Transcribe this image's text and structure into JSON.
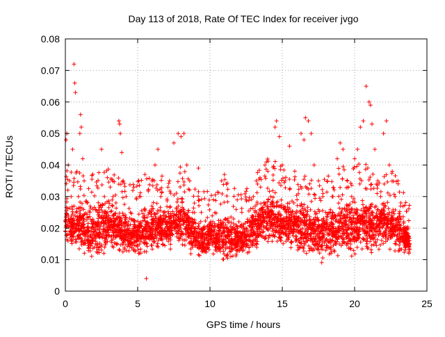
{
  "chart_data": {
    "type": "scatter",
    "title": "Day 113 of 2018, Rate Of TEC Index for receiver jvgo",
    "xlabel": "GPS time / hours",
    "ylabel": "ROTI / TECUs",
    "xlim": [
      0,
      25
    ],
    "ylim": [
      0,
      0.08
    ],
    "x_ticks": [
      "0",
      "5",
      "10",
      "15",
      "20",
      "25"
    ],
    "y_ticks": [
      "0",
      "0.01",
      "0.02",
      "0.03",
      "0.04",
      "0.05",
      "0.06",
      "0.07",
      "0.08"
    ],
    "x_tick_values": [
      0,
      5,
      10,
      15,
      20,
      25
    ],
    "y_tick_values": [
      0,
      0.01,
      0.02,
      0.03,
      0.04,
      0.05,
      0.06,
      0.07,
      0.08
    ],
    "grid": true,
    "marker": "+",
    "marker_color": "#ff0000",
    "series": [
      {
        "points": [
          [
            0.05,
            0.048
          ],
          [
            0.1,
            0.05
          ],
          [
            0.2,
            0.04
          ],
          [
            0.3,
            0.035
          ],
          [
            0.4,
            0.03
          ],
          [
            0.5,
            0.045
          ],
          [
            0.6,
            0.072
          ],
          [
            0.65,
            0.066
          ],
          [
            0.7,
            0.063
          ],
          [
            0.8,
            0.038
          ],
          [
            0.9,
            0.03
          ],
          [
            1.0,
            0.05
          ],
          [
            1.05,
            0.056
          ],
          [
            1.1,
            0.052
          ],
          [
            1.2,
            0.042
          ],
          [
            1.3,
            0.035
          ],
          [
            1.5,
            0.028
          ],
          [
            1.7,
            0.025
          ],
          [
            1.9,
            0.018
          ],
          [
            2.1,
            0.015
          ],
          [
            2.3,
            0.022
          ],
          [
            2.5,
            0.045
          ],
          [
            2.7,
            0.03
          ],
          [
            2.9,
            0.025
          ],
          [
            3.1,
            0.033
          ],
          [
            3.3,
            0.03
          ],
          [
            3.5,
            0.028
          ],
          [
            3.7,
            0.054
          ],
          [
            3.75,
            0.053
          ],
          [
            3.8,
            0.05
          ],
          [
            3.9,
            0.044
          ],
          [
            4.0,
            0.035
          ],
          [
            4.2,
            0.03
          ],
          [
            4.5,
            0.025
          ],
          [
            4.8,
            0.021
          ],
          [
            5.0,
            0.018
          ],
          [
            5.2,
            0.03
          ],
          [
            5.5,
            0.037
          ],
          [
            5.6,
            0.004
          ],
          [
            5.8,
            0.025
          ],
          [
            6.0,
            0.035
          ],
          [
            6.2,
            0.04
          ],
          [
            6.4,
            0.045
          ],
          [
            6.6,
            0.03
          ],
          [
            6.8,
            0.025
          ],
          [
            7.0,
            0.022
          ],
          [
            7.2,
            0.035
          ],
          [
            7.5,
            0.047
          ],
          [
            7.8,
            0.05
          ],
          [
            8.0,
            0.049
          ],
          [
            8.2,
            0.05
          ],
          [
            8.4,
            0.04
          ],
          [
            8.6,
            0.035
          ],
          [
            8.8,
            0.025
          ],
          [
            9.0,
            0.02
          ],
          [
            9.2,
            0.039
          ],
          [
            9.4,
            0.025
          ],
          [
            9.6,
            0.018
          ],
          [
            9.8,
            0.015
          ],
          [
            10.0,
            0.02
          ],
          [
            10.2,
            0.022
          ],
          [
            10.5,
            0.018
          ],
          [
            10.8,
            0.035
          ],
          [
            11.0,
            0.037
          ],
          [
            11.2,
            0.02
          ],
          [
            11.5,
            0.015
          ],
          [
            11.8,
            0.013
          ],
          [
            12.0,
            0.022
          ],
          [
            12.2,
            0.025
          ],
          [
            12.5,
            0.02
          ],
          [
            12.8,
            0.018
          ],
          [
            13.0,
            0.03
          ],
          [
            13.2,
            0.035
          ],
          [
            13.5,
            0.033
          ],
          [
            13.8,
            0.04
          ],
          [
            14.0,
            0.038
          ],
          [
            14.2,
            0.03
          ],
          [
            14.5,
            0.052
          ],
          [
            14.6,
            0.054
          ],
          [
            14.8,
            0.049
          ],
          [
            15.0,
            0.04
          ],
          [
            15.2,
            0.035
          ],
          [
            15.5,
            0.046
          ],
          [
            15.8,
            0.028
          ],
          [
            16.0,
            0.025
          ],
          [
            16.3,
            0.05
          ],
          [
            16.5,
            0.048
          ],
          [
            16.6,
            0.055
          ],
          [
            16.8,
            0.054
          ],
          [
            17.0,
            0.05
          ],
          [
            17.2,
            0.04
          ],
          [
            17.5,
            0.035
          ],
          [
            17.8,
            0.03
          ],
          [
            18.0,
            0.025
          ],
          [
            18.2,
            0.02
          ],
          [
            18.5,
            0.03
          ],
          [
            18.8,
            0.042
          ],
          [
            19.0,
            0.047
          ],
          [
            19.2,
            0.045
          ],
          [
            19.5,
            0.035
          ],
          [
            19.8,
            0.03
          ],
          [
            20.0,
            0.042
          ],
          [
            20.2,
            0.045
          ],
          [
            20.4,
            0.052
          ],
          [
            20.6,
            0.054
          ],
          [
            20.8,
            0.065
          ],
          [
            21.0,
            0.06
          ],
          [
            21.1,
            0.059
          ],
          [
            21.2,
            0.053
          ],
          [
            21.4,
            0.045
          ],
          [
            21.6,
            0.035
          ],
          [
            21.8,
            0.03
          ],
          [
            22.0,
            0.05
          ],
          [
            22.2,
            0.054
          ],
          [
            22.4,
            0.04
          ],
          [
            22.6,
            0.038
          ],
          [
            22.8,
            0.03
          ],
          [
            23.0,
            0.035
          ],
          [
            23.2,
            0.028
          ],
          [
            23.4,
            0.022
          ],
          [
            23.6,
            0.02
          ],
          [
            23.75,
            0.012
          ]
        ],
        "dense_band_points": [
          [
            0,
            0.012,
            0.032
          ],
          [
            0.5,
            0.012,
            0.03
          ],
          [
            1,
            0.012,
            0.03
          ],
          [
            1.5,
            0.009,
            0.028
          ],
          [
            2,
            0.008,
            0.03
          ],
          [
            2.5,
            0.01,
            0.032
          ],
          [
            3,
            0.011,
            0.031
          ],
          [
            3.5,
            0.012,
            0.03
          ],
          [
            4,
            0.01,
            0.027
          ],
          [
            4.5,
            0.01,
            0.026
          ],
          [
            5,
            0.01,
            0.027
          ],
          [
            5.5,
            0.01,
            0.028
          ],
          [
            6,
            0.012,
            0.03
          ],
          [
            6.5,
            0.012,
            0.03
          ],
          [
            7,
            0.012,
            0.028
          ],
          [
            7.5,
            0.011,
            0.03
          ],
          [
            8,
            0.012,
            0.032
          ],
          [
            8.5,
            0.011,
            0.03
          ],
          [
            9,
            0.009,
            0.025
          ],
          [
            9.5,
            0.01,
            0.024
          ],
          [
            10,
            0.01,
            0.025
          ],
          [
            10.5,
            0.01,
            0.024
          ],
          [
            11,
            0.008,
            0.028
          ],
          [
            11.5,
            0.008,
            0.025
          ],
          [
            12,
            0.01,
            0.024
          ],
          [
            12.5,
            0.01,
            0.025
          ],
          [
            13,
            0.011,
            0.03
          ],
          [
            13.5,
            0.012,
            0.032
          ],
          [
            14,
            0.013,
            0.035
          ],
          [
            14.5,
            0.012,
            0.035
          ],
          [
            15,
            0.011,
            0.032
          ],
          [
            15.5,
            0.011,
            0.032
          ],
          [
            16,
            0.011,
            0.03
          ],
          [
            16.5,
            0.01,
            0.03
          ],
          [
            17,
            0.009,
            0.028
          ],
          [
            17.5,
            0.008,
            0.028
          ],
          [
            18,
            0.008,
            0.028
          ],
          [
            18.5,
            0.009,
            0.03
          ],
          [
            19,
            0.01,
            0.032
          ],
          [
            19.5,
            0.01,
            0.032
          ],
          [
            20,
            0.009,
            0.032
          ],
          [
            20.5,
            0.009,
            0.033
          ],
          [
            21,
            0.01,
            0.032
          ],
          [
            21.5,
            0.011,
            0.03
          ],
          [
            22,
            0.012,
            0.032
          ],
          [
            22.5,
            0.012,
            0.03
          ],
          [
            23,
            0.011,
            0.028
          ],
          [
            23.5,
            0.01,
            0.025
          ],
          [
            23.8,
            0.01,
            0.02
          ]
        ]
      }
    ]
  }
}
